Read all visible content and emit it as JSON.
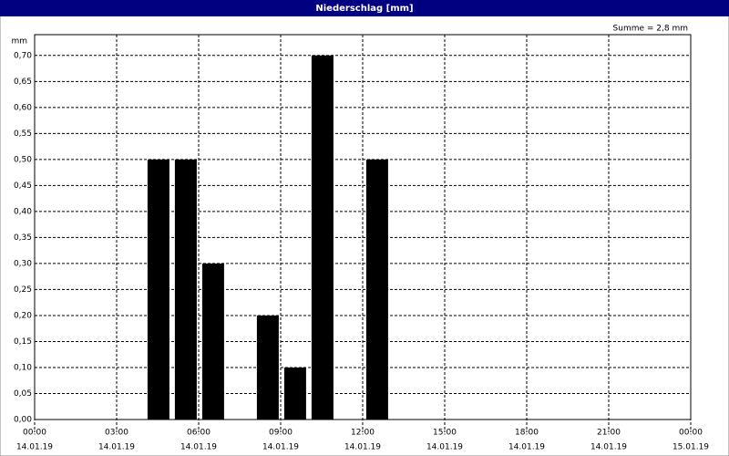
{
  "chart_data": {
    "type": "bar",
    "title": "Niederschlag [mm]",
    "y_unit": "mm",
    "annotation": "Summe = 2,8 mm",
    "x": [
      4,
      5,
      6,
      8,
      9,
      10,
      12
    ],
    "values": [
      0.5,
      0.5,
      0.3,
      0.2,
      0.1,
      0.7,
      0.5
    ],
    "color": "#000000",
    "xlim": [
      0,
      24
    ],
    "xticks": [
      {
        "value": 0,
        "label": "00:00",
        "date": "14.01.19"
      },
      {
        "value": 3,
        "label": "03:00",
        "date": "14.01.19"
      },
      {
        "value": 6,
        "label": "06:00",
        "date": "14.01.19"
      },
      {
        "value": 9,
        "label": "09:00",
        "date": "14.01.19"
      },
      {
        "value": 12,
        "label": "12:00",
        "date": "14.01.19"
      },
      {
        "value": 15,
        "label": "15:00",
        "date": "14.01.19"
      },
      {
        "value": 18,
        "label": "18:00",
        "date": "14.01.19"
      },
      {
        "value": 21,
        "label": "21:00",
        "date": "14.01.19"
      },
      {
        "value": 24,
        "label": "00:00",
        "date": "15.01.19"
      }
    ],
    "ylim": [
      0,
      0.74
    ],
    "yticks": [
      {
        "value": 0,
        "label": "0,00"
      },
      {
        "value": 0.05,
        "label": "0,05"
      },
      {
        "value": 0.1,
        "label": "0,10"
      },
      {
        "value": 0.15,
        "label": "0,15"
      },
      {
        "value": 0.2,
        "label": "0,20"
      },
      {
        "value": 0.25,
        "label": "0,25"
      },
      {
        "value": 0.3,
        "label": "0,30"
      },
      {
        "value": 0.35,
        "label": "0,35"
      },
      {
        "value": 0.4,
        "label": "0,40"
      },
      {
        "value": 0.45,
        "label": "0,45"
      },
      {
        "value": 0.5,
        "label": "0,50"
      },
      {
        "value": 0.55,
        "label": "0,55"
      },
      {
        "value": 0.6,
        "label": "0,60"
      },
      {
        "value": 0.65,
        "label": "0,65"
      },
      {
        "value": 0.7,
        "label": "0,70"
      }
    ],
    "grid": true
  }
}
